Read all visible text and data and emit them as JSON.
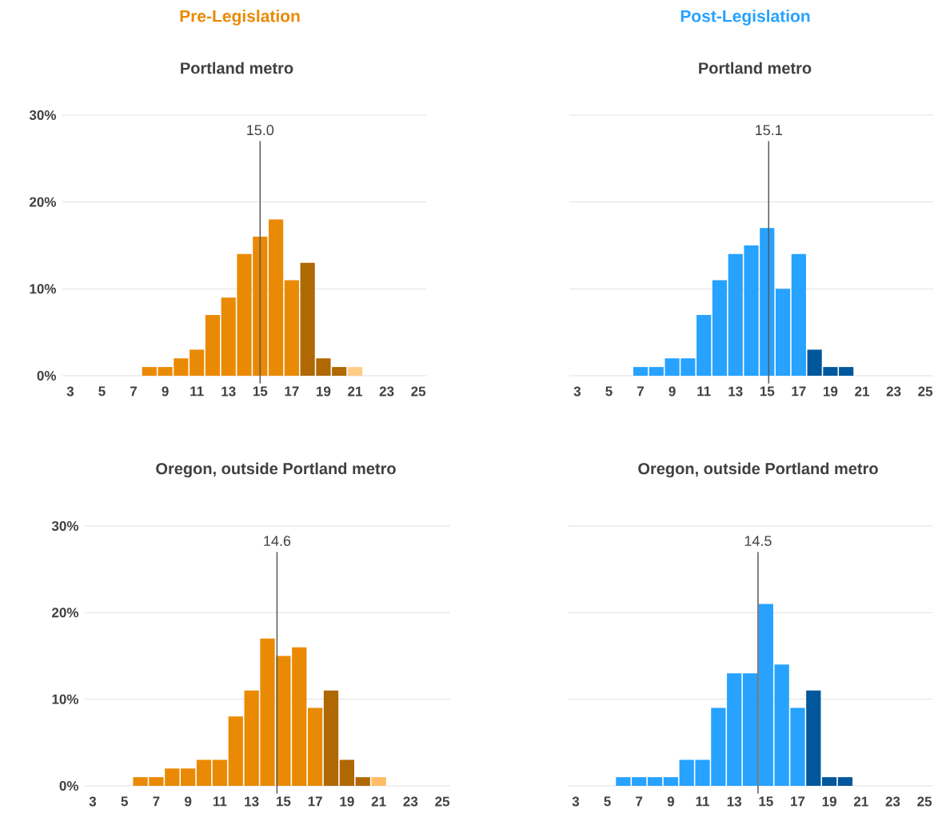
{
  "chart_data": [
    {
      "type": "bar",
      "title": "Pre-Legislation",
      "subtitle": "Portland metro",
      "x": [
        8,
        9,
        10,
        11,
        12,
        13,
        14,
        15,
        16,
        17,
        18,
        19,
        20,
        21
      ],
      "values": [
        1,
        1,
        2,
        3,
        7,
        9,
        14,
        16,
        18,
        11,
        13,
        2,
        1,
        1
      ],
      "colors": [
        "#ea8a04",
        "#ea8a04",
        "#ea8a04",
        "#ea8a04",
        "#ea8a04",
        "#ea8a04",
        "#ea8a04",
        "#ea8a04",
        "#ea8a04",
        "#ea8a04",
        "#b06803",
        "#b06803",
        "#b06803",
        "#ffcc88"
      ],
      "xlim": [
        2.5,
        25.5
      ],
      "xticks": [
        3,
        5,
        7,
        9,
        11,
        13,
        15,
        17,
        19,
        21,
        23,
        25
      ],
      "ylim": [
        0,
        30
      ],
      "yticks": [
        {
          "value": 0,
          "label": "0%"
        },
        {
          "value": 10,
          "label": "10%"
        },
        {
          "value": 20,
          "label": "20%"
        },
        {
          "value": 30,
          "label": "30%"
        }
      ],
      "grid": "y",
      "ref_lines": [
        {
          "axis": "x",
          "value": 15.0,
          "label": "15.0",
          "color": "#595959"
        }
      ]
    },
    {
      "type": "bar",
      "title": "Post-Legislation",
      "subtitle": "Portland metro",
      "x": [
        7,
        8,
        9,
        10,
        11,
        12,
        13,
        14,
        15,
        16,
        17,
        18,
        19,
        20
      ],
      "values": [
        1,
        1,
        2,
        2,
        7,
        11,
        14,
        15,
        17,
        10,
        14,
        3,
        1,
        1
      ],
      "colors": [
        "#27a2ff",
        "#27a2ff",
        "#27a2ff",
        "#27a2ff",
        "#27a2ff",
        "#27a2ff",
        "#27a2ff",
        "#27a2ff",
        "#27a2ff",
        "#27a2ff",
        "#27a2ff",
        "#01579b",
        "#01579b",
        "#01579b"
      ],
      "xlim": [
        2.5,
        25.5
      ],
      "xticks": [
        3,
        5,
        7,
        9,
        11,
        13,
        15,
        17,
        19,
        21,
        23,
        25
      ],
      "ylim": [
        0,
        30
      ],
      "yticks": [
        0,
        10,
        20,
        30
      ],
      "grid": "y",
      "tick_labels": "x",
      "ref_lines": [
        {
          "axis": "x",
          "value": 15.1,
          "label": "15.1",
          "color": "#595959"
        }
      ]
    },
    {
      "type": "bar",
      "title": "Oregon, outside Portland metro",
      "x": [
        6,
        7,
        8,
        9,
        10,
        11,
        12,
        13,
        14,
        15,
        16,
        17,
        18,
        19,
        20,
        21
      ],
      "values": [
        1,
        1,
        2,
        2,
        3,
        3,
        8,
        11,
        17,
        15,
        16,
        9,
        11,
        3,
        1,
        1
      ],
      "colors": [
        "#ea8a04",
        "#ea8a04",
        "#ea8a04",
        "#ea8a04",
        "#ea8a04",
        "#ea8a04",
        "#ea8a04",
        "#ea8a04",
        "#ea8a04",
        "#ea8a04",
        "#ea8a04",
        "#ea8a04",
        "#b06803",
        "#b06803",
        "#b06803",
        "#ffbb66"
      ],
      "xlim": [
        2.5,
        25.5
      ],
      "xticks": [
        3,
        5,
        7,
        9,
        11,
        13,
        15,
        17,
        19,
        21,
        23,
        25
      ],
      "ylim": [
        0,
        30
      ],
      "yticks": [
        {
          "value": 0,
          "label": "0%"
        },
        {
          "value": 10,
          "label": "10%"
        },
        {
          "value": 20,
          "label": "20%"
        },
        {
          "value": 30,
          "label": "30%"
        }
      ],
      "grid": "y",
      "ref_lines": [
        {
          "axis": "x",
          "value": 14.6,
          "label": "14.6",
          "color": "#595959"
        }
      ]
    },
    {
      "type": "bar",
      "title": "Oregon, outside Portland metro",
      "x": [
        6,
        7,
        8,
        9,
        10,
        11,
        12,
        13,
        14,
        15,
        16,
        17,
        18,
        19,
        20
      ],
      "values": [
        1,
        1,
        1,
        1,
        3,
        3,
        9,
        13,
        13,
        21,
        14,
        9,
        11,
        1,
        1
      ],
      "colors": [
        "#27a2ff",
        "#27a2ff",
        "#27a2ff",
        "#27a2ff",
        "#27a2ff",
        "#27a2ff",
        "#27a2ff",
        "#27a2ff",
        "#27a2ff",
        "#27a2ff",
        "#27a2ff",
        "#27a2ff",
        "#01579b",
        "#01579b",
        "#01579b"
      ],
      "xlim": [
        2.5,
        25.5
      ],
      "xticks": [
        3,
        5,
        7,
        9,
        11,
        13,
        15,
        17,
        19,
        21,
        23,
        25
      ],
      "ylim": [
        0,
        30
      ],
      "yticks": [
        0,
        10,
        20,
        30
      ],
      "grid": "y",
      "tick_labels": "x",
      "ref_lines": [
        {
          "axis": "x",
          "value": 14.5,
          "label": "14.5",
          "color": "#595959"
        }
      ]
    }
  ]
}
